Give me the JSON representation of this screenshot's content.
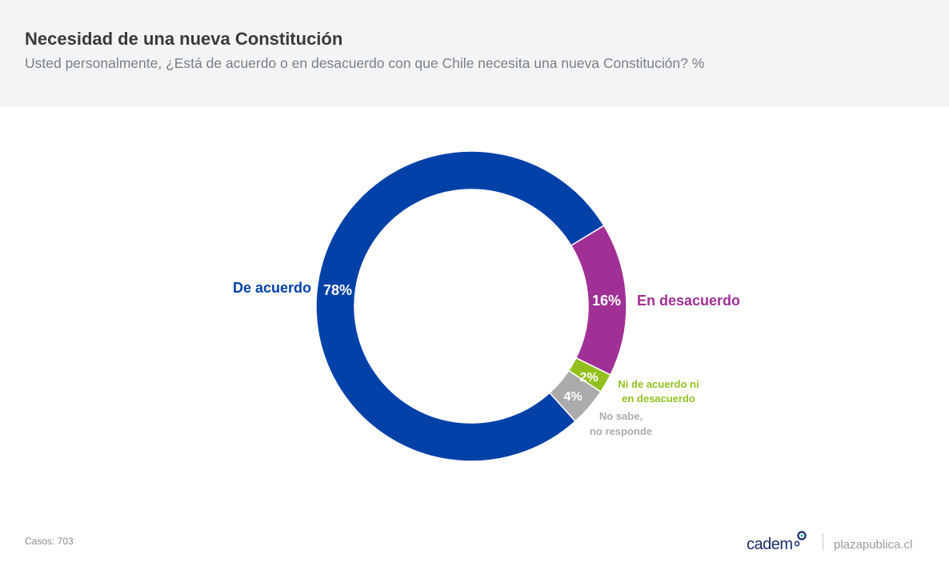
{
  "header": {
    "title": "Necesidad de una nueva Constitución",
    "subtitle": "Usted personalmente, ¿Está de acuerdo o en desacuerdo con que Chile necesita una nueva Constitución? %"
  },
  "chart_data": {
    "type": "pie",
    "variant": "donut",
    "title": "Necesidad de una nueva Constitución",
    "categories": [
      "De acuerdo",
      "En desacuerdo",
      "Ni de acuerdo ni en desacuerdo",
      "No sabe, no responde"
    ],
    "values": [
      78,
      16,
      2,
      4
    ],
    "value_labels": [
      "78%",
      "16%",
      "2%",
      "4%"
    ],
    "category_label_lines": [
      [
        "De acuerdo"
      ],
      [
        "En desacuerdo"
      ],
      [
        "Ni de acuerdo ni",
        "en desacuerdo"
      ],
      [
        "No sabe,",
        "no responde"
      ]
    ],
    "colors": [
      "#0041a8",
      "#a03096",
      "#93c01f",
      "#ababab"
    ],
    "unit": "%"
  },
  "footer": {
    "cases": "Casos: 703",
    "brand": "cadem",
    "site": "plazapublica.cl"
  }
}
